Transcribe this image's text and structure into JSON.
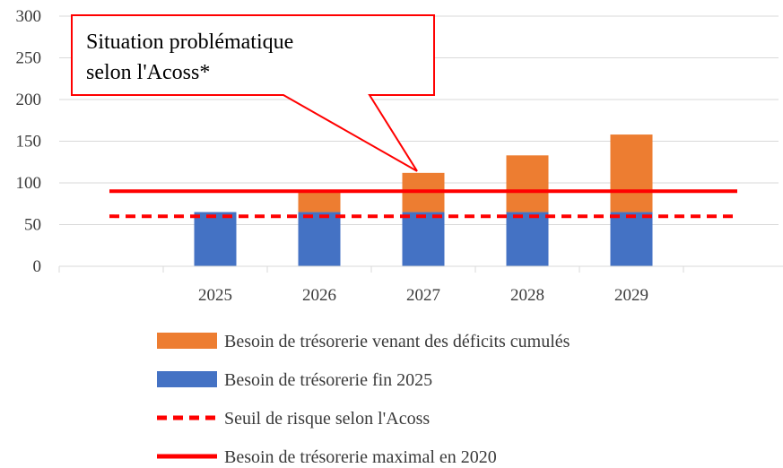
{
  "chart_data": {
    "type": "bar",
    "stacked": true,
    "categories": [
      "2025",
      "2026",
      "2027",
      "2028",
      "2029"
    ],
    "ylim": [
      0,
      300
    ],
    "yticks": [
      "0",
      "50",
      "100",
      "150",
      "200",
      "250",
      "300"
    ],
    "grid": true,
    "legend_placement": "bottom",
    "series": [
      {
        "name": "Besoin de trésorerie fin 2025",
        "kind": "bar",
        "color": "#4472C4",
        "values": [
          65,
          65,
          65,
          65,
          65
        ]
      },
      {
        "name": "Besoin de trésorerie venant des déficits cumulés",
        "kind": "bar",
        "color": "#ED7D31",
        "values": [
          0,
          25,
          47,
          68,
          93
        ]
      },
      {
        "name": "Seuil de risque selon l'Acoss",
        "kind": "line",
        "style": "dashed",
        "color": "#FF0000",
        "value": 60
      },
      {
        "name": "Besoin de trésorerie maximal en 2020",
        "kind": "line",
        "style": "solid",
        "color": "#FF0000",
        "value": 90
      }
    ],
    "legend_order": [
      1,
      0,
      2,
      3
    ],
    "annotation": {
      "lines": [
        "Situation problématique",
        "selon l'Acoss*"
      ],
      "border_color": "#FF0000",
      "points_to_category": "2027"
    }
  }
}
